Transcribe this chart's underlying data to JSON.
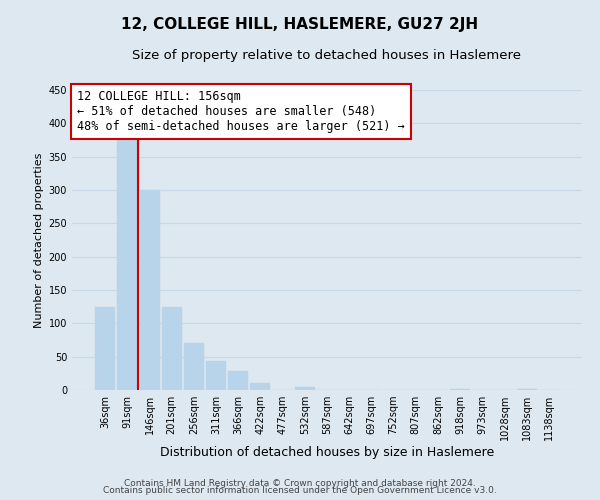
{
  "title": "12, COLLEGE HILL, HASLEMERE, GU27 2JH",
  "subtitle": "Size of property relative to detached houses in Haslemere",
  "xlabel": "Distribution of detached houses by size in Haslemere",
  "ylabel": "Number of detached properties",
  "bar_color": "#b8d4ea",
  "bar_edge_color": "#b8d4ea",
  "grid_color": "#c8d8e8",
  "background_color": "#dde8f0",
  "bin_labels": [
    "36sqm",
    "91sqm",
    "146sqm",
    "201sqm",
    "256sqm",
    "311sqm",
    "366sqm",
    "422sqm",
    "477sqm",
    "532sqm",
    "587sqm",
    "642sqm",
    "697sqm",
    "752sqm",
    "807sqm",
    "862sqm",
    "918sqm",
    "973sqm",
    "1028sqm",
    "1083sqm",
    "1138sqm"
  ],
  "bar_heights": [
    125,
    375,
    300,
    125,
    70,
    43,
    28,
    10,
    0,
    5,
    0,
    0,
    0,
    0,
    0,
    0,
    2,
    0,
    0,
    2,
    0
  ],
  "ylim": [
    0,
    450
  ],
  "yticks": [
    0,
    50,
    100,
    150,
    200,
    250,
    300,
    350,
    400,
    450
  ],
  "property_line_color": "#cc0000",
  "annotation_line1": "12 COLLEGE HILL: 156sqm",
  "annotation_line2": "← 51% of detached houses are smaller (548)",
  "annotation_line3": "48% of semi-detached houses are larger (521) →",
  "annotation_box_color": "white",
  "annotation_box_edge": "#cc0000",
  "footer_line1": "Contains HM Land Registry data © Crown copyright and database right 2024.",
  "footer_line2": "Contains public sector information licensed under the Open Government Licence v3.0.",
  "title_fontsize": 11,
  "subtitle_fontsize": 9.5,
  "xlabel_fontsize": 9,
  "ylabel_fontsize": 8,
  "tick_fontsize": 7,
  "annotation_fontsize": 8.5,
  "footer_fontsize": 6.5
}
